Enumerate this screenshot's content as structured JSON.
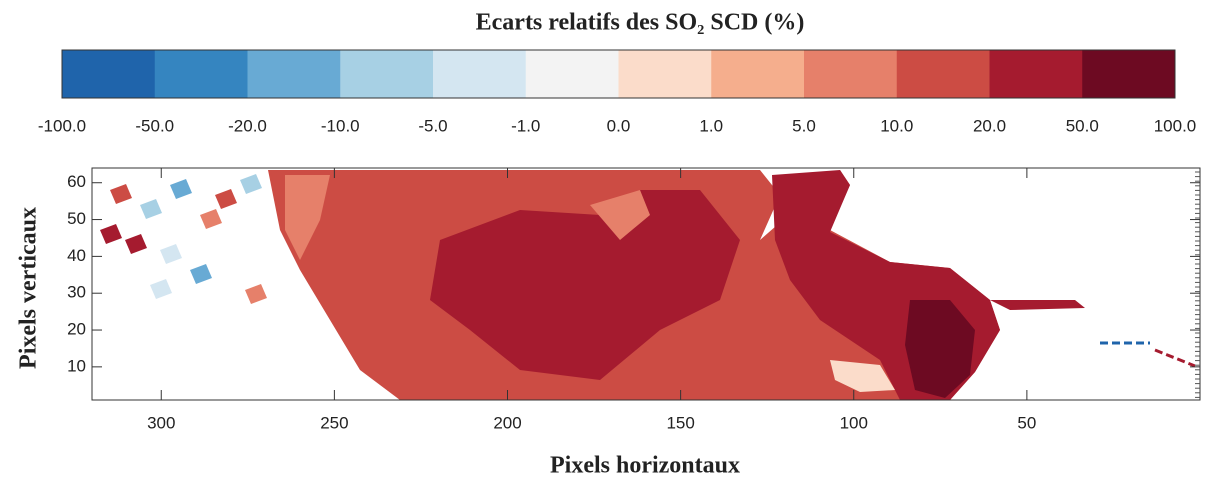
{
  "chart_data": {
    "type": "contour",
    "title": "Ecarts relatifs des SO₂ SCD (%)",
    "xlabel": "Pixels horizontaux",
    "ylabel": "Pixels verticaux",
    "xlim": [
      320,
      0
    ],
    "ylim": [
      1,
      64
    ],
    "xticks": [
      300,
      250,
      200,
      150,
      100,
      50
    ],
    "yticks": [
      10,
      20,
      30,
      40,
      50,
      60
    ],
    "colorbar": {
      "ticks": [
        {
          "value": -100,
          "label": "-100.0"
        },
        {
          "value": -50,
          "label": "-50.0"
        },
        {
          "value": -20,
          "label": "-20.0"
        },
        {
          "value": -10,
          "label": "-10.0"
        },
        {
          "value": -5,
          "label": "-5.0"
        },
        {
          "value": -1,
          "label": "-1.0"
        },
        {
          "value": 0,
          "label": "0.0"
        },
        {
          "value": 1,
          "label": "1.0"
        },
        {
          "value": 5,
          "label": "5.0"
        },
        {
          "value": 10,
          "label": "10.0"
        },
        {
          "value": 20,
          "label": "20.0"
        },
        {
          "value": 50,
          "label": "50.0"
        },
        {
          "value": 100,
          "label": "100.0"
        }
      ],
      "colors": [
        "#1f64ab",
        "#3585c0",
        "#68aad4",
        "#a7d0e4",
        "#d4e6f1",
        "#f3f3f3",
        "#fbdcca",
        "#f5ae8d",
        "#e6806a",
        "#cc4c44",
        "#a51b2f",
        "#6d0a22"
      ]
    }
  }
}
